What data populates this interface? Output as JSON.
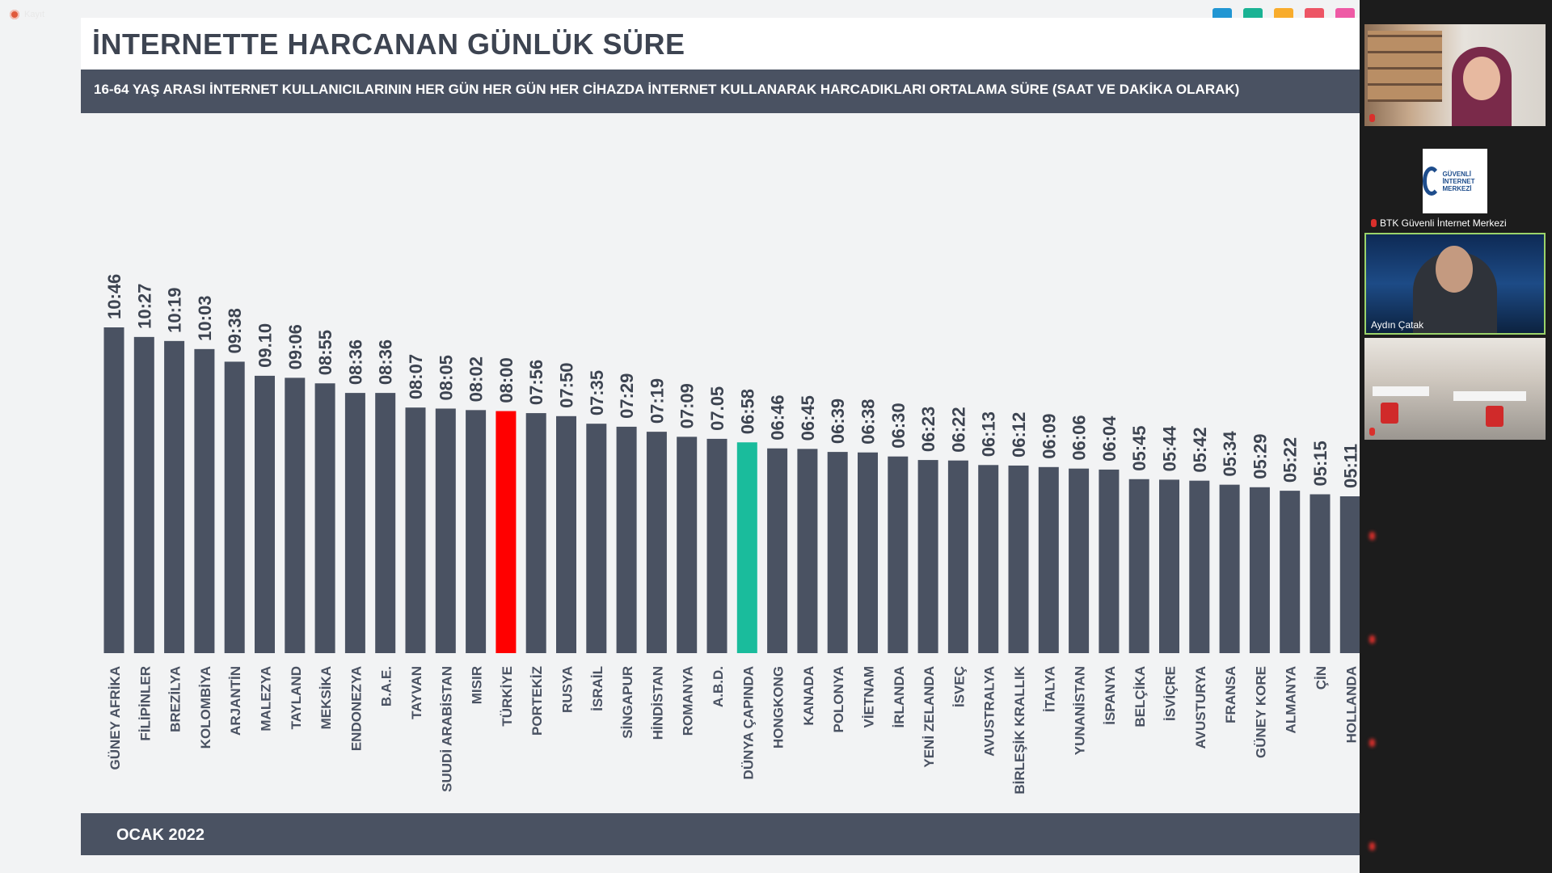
{
  "recording": {
    "label": "Kayıt"
  },
  "colors": {
    "bar": "#4a5262",
    "highlight_turkey": "#ff0000",
    "highlight_world": "#1abc9c",
    "swatches": [
      "#2196d3",
      "#1ab394",
      "#f8ac2c",
      "#ed5565",
      "#ee5aa5"
    ]
  },
  "slide": {
    "title": "İNTERNETTE HARCANAN GÜNLÜK SÜRE",
    "subtitle": "16-64 YAŞ ARASI İNTERNET KULLANICILARININ HER GÜN HER GÜN HER CİHAZDA İNTERNET KULLANARAK HARCADIKLARI ORTALAMA SÜRE (SAAT VE DAKİKA OLARAK)",
    "footer": "OCAK 2022"
  },
  "chart_data": {
    "type": "bar",
    "categories": [
      "GÜNEY AFRİKA",
      "FİLİPİNLER",
      "BREZİLYA",
      "KOLOMBİYA",
      "ARJANTİN",
      "MALEZYA",
      "TAYLAND",
      "MEKSİKA",
      "ENDONEZYA",
      "B.A.E.",
      "TAYVAN",
      "SUUDİ ARABİSTAN",
      "MISIR",
      "TÜRKİYE",
      "PORTEKİZ",
      "RUSYA",
      "İSRAİL",
      "SİNGAPUR",
      "HİNDİSTAN",
      "ROMANYA",
      "A.B.D.",
      "DÜNYA ÇAPINDA",
      "HONGKONG",
      "KANADA",
      "POLONYA",
      "VİETNAM",
      "İRLANDA",
      "YENİ ZELANDA",
      "İSVEÇ",
      "AVUSTRALYA",
      "BİRLEŞİK KRALLIK",
      "İTALYA",
      "YUNANİSTAN",
      "İSPANYA",
      "BELÇİKA",
      "İSVİÇRE",
      "AVUSTURYA",
      "FRANSA",
      "GÜNEY KORE",
      "ALMANYA",
      "ÇİN",
      "HOLLANDA"
    ],
    "labels": [
      "10:46",
      "10:27",
      "10:19",
      "10:03",
      "09:38",
      "09.10",
      "09:06",
      "08:55",
      "08:36",
      "08:36",
      "08:07",
      "08:05",
      "08:02",
      "08:00",
      "07:56",
      "07:50",
      "07:35",
      "07:29",
      "07:19",
      "07:09",
      "07.05",
      "06:58",
      "06:46",
      "06:45",
      "06:39",
      "06:38",
      "06:30",
      "06:23",
      "06:22",
      "06:13",
      "06:12",
      "06:09",
      "06:06",
      "06:04",
      "05:45",
      "05:44",
      "05:42",
      "05:34",
      "05:29",
      "05:22",
      "05:15",
      "05:11"
    ],
    "values": [
      10.767,
      10.45,
      10.317,
      10.05,
      9.633,
      9.167,
      9.1,
      8.917,
      8.6,
      8.6,
      8.117,
      8.083,
      8.033,
      8.0,
      7.933,
      7.833,
      7.583,
      7.483,
      7.317,
      7.15,
      7.083,
      6.967,
      6.767,
      6.75,
      6.65,
      6.633,
      6.5,
      6.383,
      6.367,
      6.217,
      6.2,
      6.15,
      6.1,
      6.067,
      5.75,
      5.733,
      5.7,
      5.567,
      5.483,
      5.367,
      5.25,
      5.183
    ],
    "highlight": {
      "TÜRKİYE": "#ff0000",
      "DÜNYA ÇAPINDA": "#1abc9c"
    },
    "ylabel": "",
    "xlabel": ""
  },
  "participants": [
    {
      "name": "",
      "kind": "camera"
    },
    {
      "name": "BTK Güvenli İnternet Merkezi",
      "kind": "logo",
      "logo_text": "GÜVENLİ İNTERNET MERKEZİ"
    },
    {
      "name": "Aydın Çatak",
      "kind": "camera",
      "active_speaker": true
    },
    {
      "name": "",
      "kind": "camera"
    },
    {
      "name": "",
      "kind": "blurred"
    },
    {
      "name": "",
      "kind": "blurred"
    },
    {
      "name": "",
      "kind": "blurred"
    },
    {
      "name": "",
      "kind": "blurred"
    }
  ]
}
